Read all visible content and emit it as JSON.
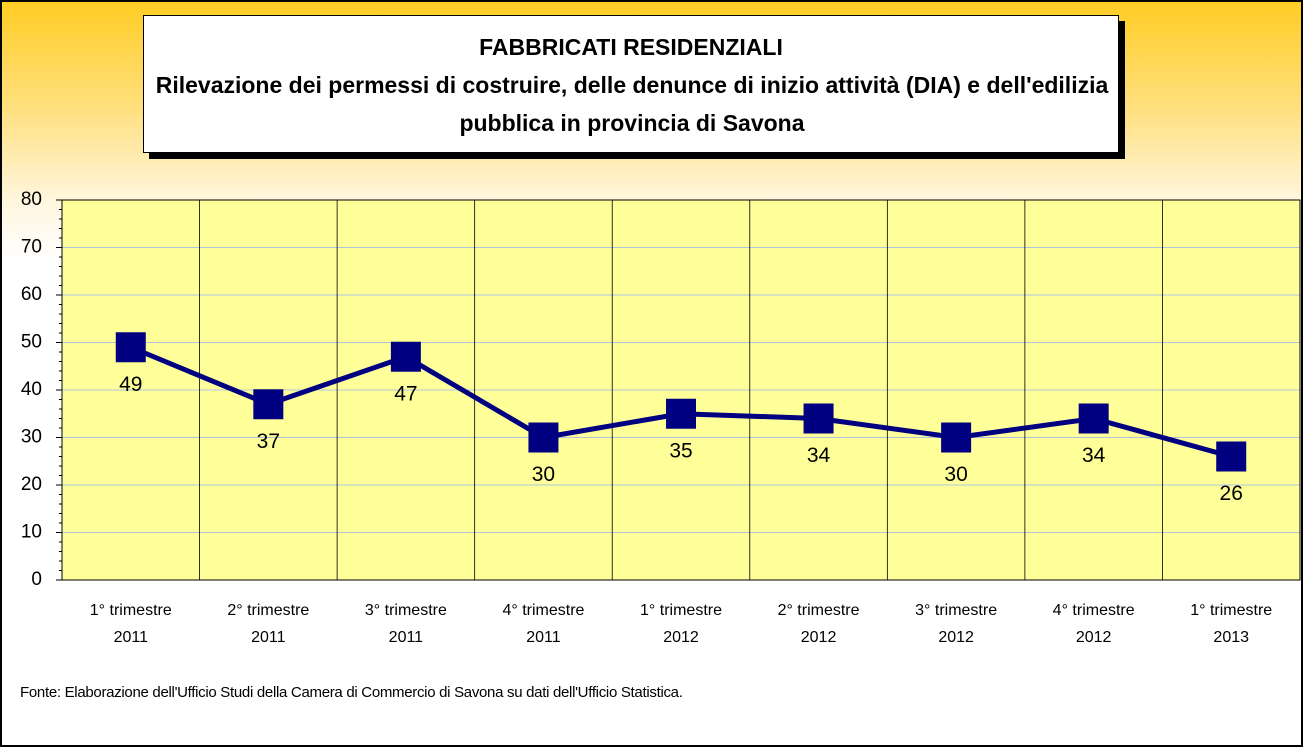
{
  "chart_data": {
    "type": "line",
    "title": "FABBRICATI RESIDENZIALI",
    "subtitle": "Rilevazione dei permessi di costruire, delle denunce di inizio attività (DIA) e dell'edilizia pubblica in provincia di Savona",
    "categories": [
      "1° trimestre 2011",
      "2° trimestre 2011",
      "3° trimestre 2011",
      "4° trimestre 2011",
      "1° trimestre 2012",
      "2° trimestre 2012",
      "3° trimestre 2012",
      "4° trimestre 2012",
      "1° trimestre 2013"
    ],
    "values": [
      49,
      37,
      47,
      30,
      35,
      34,
      30,
      34,
      26
    ],
    "color": "#000080",
    "ylim": [
      0,
      80
    ],
    "yticks": [
      0,
      10,
      20,
      30,
      40,
      50,
      60,
      70,
      80
    ],
    "grid": true,
    "source": "Fonte:  Elaborazione dell'Ufficio Studi  della Camera di Commercio di Savona su dati dell'Ufficio Statistica."
  }
}
